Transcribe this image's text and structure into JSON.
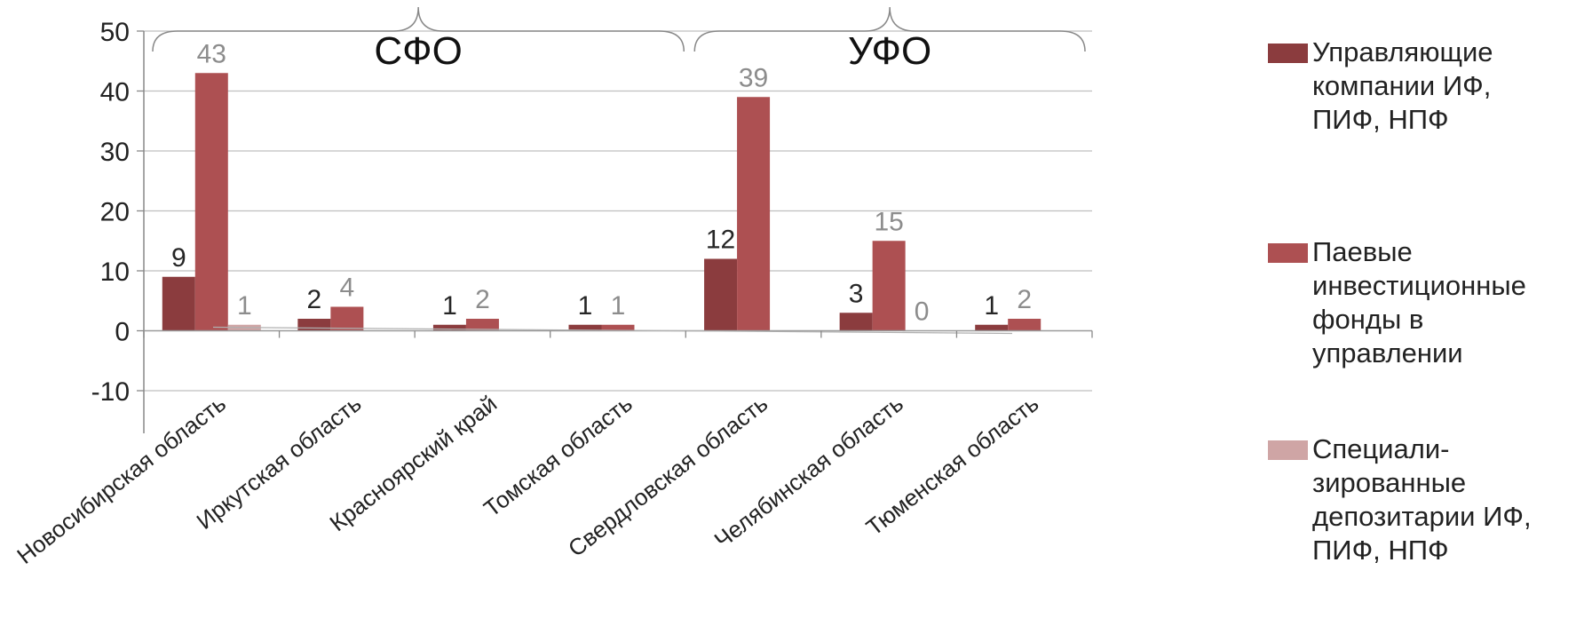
{
  "chart_data": {
    "type": "bar",
    "categories": [
      "Новосибирская область",
      "Иркутская область",
      "Красноярский край",
      "Томская область",
      "Свердловская область",
      "Челябинская область",
      "Тюменская область"
    ],
    "groups": [
      {
        "label": "СФО",
        "categories": [
          0,
          1,
          2,
          3
        ]
      },
      {
        "label": "УФО",
        "categories": [
          4,
          5,
          6
        ]
      }
    ],
    "series": [
      {
        "name": "Управляющие\nкомпании ИФ,\nПИФ, НПФ",
        "color": "#8b3c3e",
        "values": [
          9,
          2,
          1,
          1,
          12,
          3,
          1
        ],
        "labels": [
          "9",
          "2",
          "1",
          "1",
          "12",
          "3",
          "1"
        ],
        "label_color": "#262626"
      },
      {
        "name": "Паевые\nинвестиционные\nфонды  в\nуправлении",
        "color": "#ad5052",
        "values": [
          43,
          4,
          2,
          1,
          39,
          15,
          2
        ],
        "labels": [
          "43",
          "4",
          "2",
          "1",
          "39",
          "15",
          "2"
        ],
        "label_color": "#8c8c8c"
      },
      {
        "name": "Специали-\nзированные\nдепозитарии ИФ,\nПИФ, НПФ",
        "color": "#cfa5a5",
        "values": [
          1,
          0,
          0,
          0,
          0,
          0,
          0
        ],
        "labels": [
          "1",
          "",
          "",
          "",
          "",
          "0",
          ""
        ],
        "label_color": "#8c8c8c"
      }
    ],
    "yticks": [
      "50",
      "40",
      "30",
      "20",
      "10",
      "0",
      "-10"
    ],
    "ylim": [
      -10,
      50
    ],
    "grid": true,
    "legend_position": "right"
  }
}
